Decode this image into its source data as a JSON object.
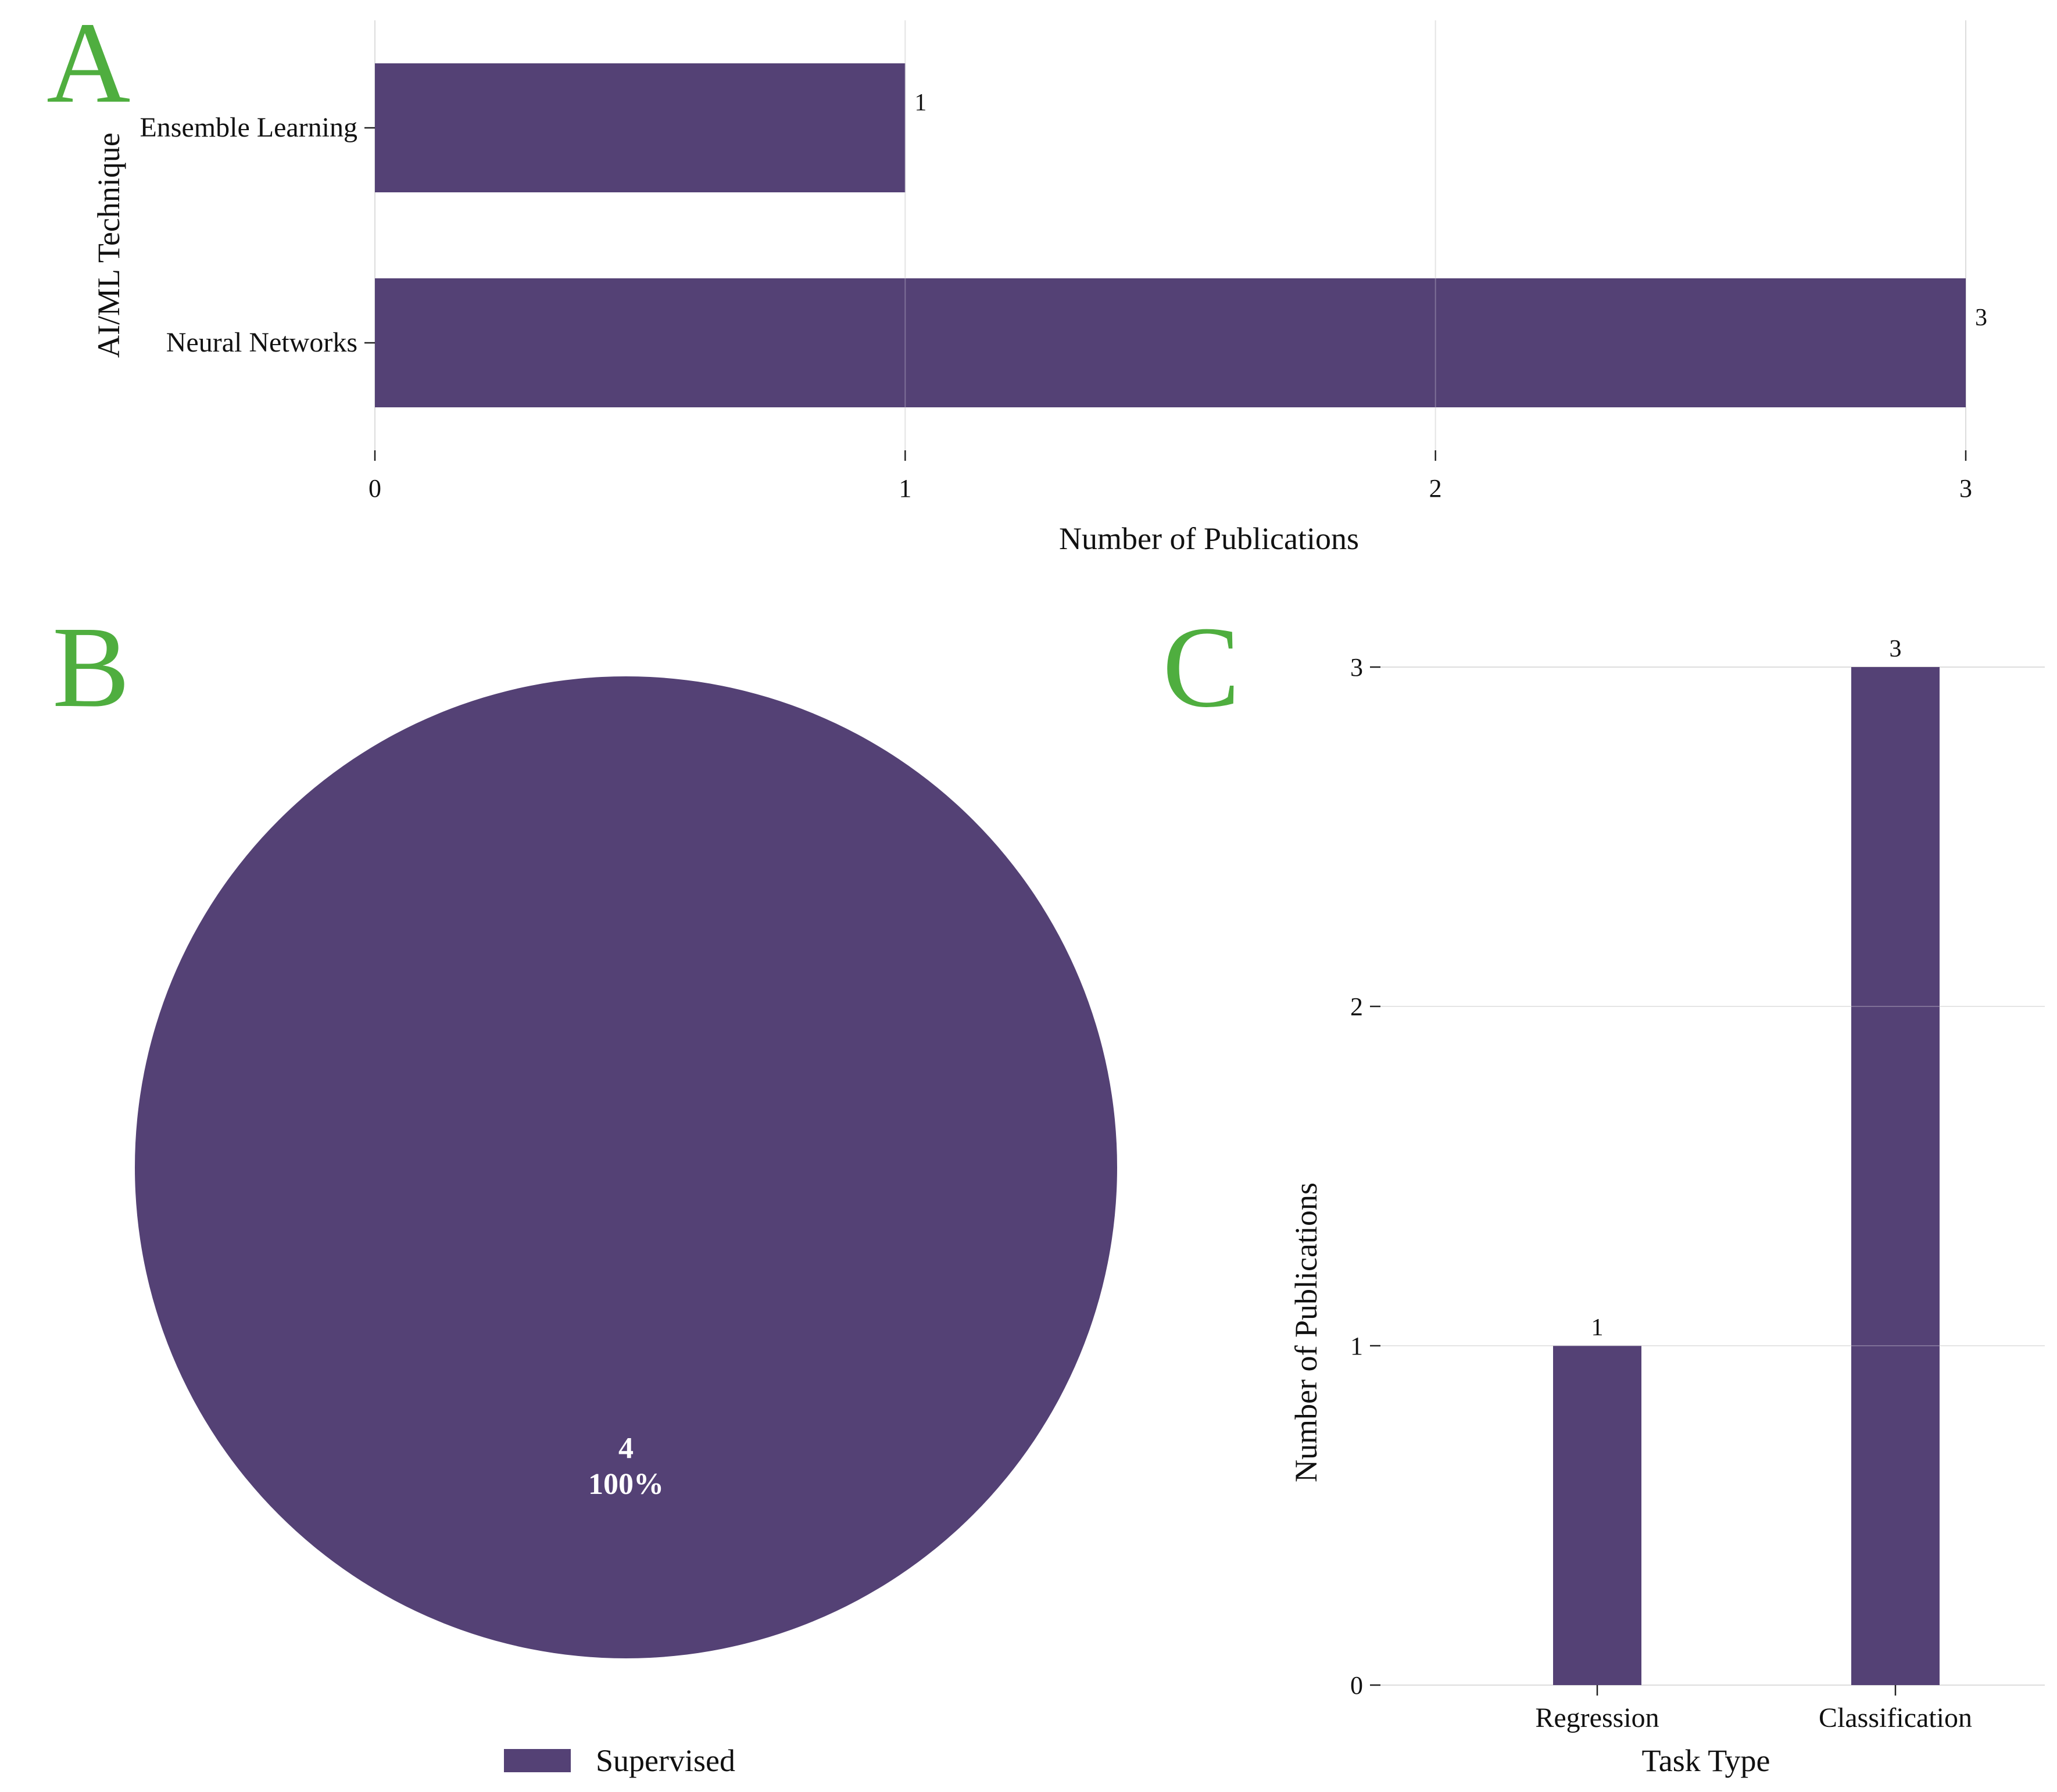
{
  "panels": {
    "a": "A",
    "b": "B",
    "c": "C"
  },
  "colors": {
    "bar": "#544175",
    "grid": "#dddddd",
    "panel_letter": "#4fae3f"
  },
  "chart_data": [
    {
      "id": "A",
      "type": "bar",
      "orientation": "horizontal",
      "categories": [
        "Ensemble Learning",
        "Neural Networks"
      ],
      "values": [
        1,
        3
      ],
      "data_labels": [
        "1",
        "3"
      ],
      "xlabel": "Number of Publications",
      "ylabel": "AI/ML Technique",
      "xlim": [
        0,
        3
      ],
      "xticks": [
        "0",
        "1",
        "2",
        "3"
      ],
      "grid": "vertical"
    },
    {
      "id": "B",
      "type": "pie",
      "labels": [
        "Supervised"
      ],
      "values": [
        4
      ],
      "slice_labels": [
        {
          "count": "4",
          "percent": "100%"
        }
      ],
      "legend": [
        "Supervised"
      ],
      "legend_position": "bottom"
    },
    {
      "id": "C",
      "type": "bar",
      "orientation": "vertical",
      "categories": [
        "Regression",
        "Classification"
      ],
      "values": [
        1,
        3
      ],
      "data_labels": [
        "1",
        "3"
      ],
      "xlabel": "Task Type",
      "ylabel": "Number of Publications",
      "ylim": [
        0,
        3
      ],
      "yticks": [
        "0",
        "1",
        "2",
        "3"
      ],
      "grid": "horizontal"
    }
  ]
}
